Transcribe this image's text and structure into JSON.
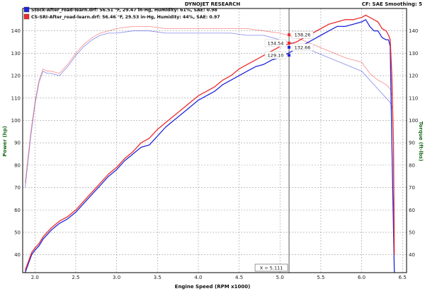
{
  "header": {
    "title": "DYNOJET RESEARCH",
    "settings": "CF: SAE  Smoothing: 5"
  },
  "chart_data": {
    "type": "line",
    "xlabel": "Engine Speed (RPM x1000)",
    "ylabel_left": "Power (hp)",
    "ylabel_right": "Torque (ft-lbs)",
    "xlim": [
      1.85,
      6.55
    ],
    "ylim": [
      32,
      150
    ],
    "x_ticks": [
      2.0,
      2.5,
      3.0,
      3.5,
      4.0,
      4.5,
      5.0,
      5.5,
      6.0,
      6.5
    ],
    "y_ticks": [
      40,
      50,
      60,
      70,
      80,
      90,
      100,
      110,
      120,
      130,
      140
    ],
    "grid": true,
    "legend_position": "top-left",
    "colors": {
      "stock": "#1f26d9",
      "cs": "#ee2b2b"
    },
    "series": [
      {
        "name": "Stock-After_road-learn.drf: 56.51 °F, 29.47 in-Hg, Humidity: 61%, SAE: 0.98",
        "key": "stock",
        "measure": "power",
        "x": [
          1.88,
          1.92,
          1.96,
          2.0,
          2.05,
          2.1,
          2.2,
          2.3,
          2.4,
          2.5,
          2.6,
          2.7,
          2.8,
          2.9,
          3.0,
          3.1,
          3.2,
          3.3,
          3.4,
          3.5,
          3.6,
          3.7,
          3.8,
          3.9,
          4.0,
          4.1,
          4.2,
          4.3,
          4.4,
          4.5,
          4.6,
          4.7,
          4.8,
          4.9,
          5.0,
          5.1,
          5.2,
          5.3,
          5.4,
          5.5,
          5.6,
          5.7,
          5.8,
          5.9,
          6.0,
          6.05,
          6.1,
          6.15,
          6.2,
          6.25,
          6.3,
          6.33,
          6.35,
          6.36,
          6.38,
          6.4
        ],
        "y": [
          32,
          36,
          40,
          42,
          44,
          47,
          51,
          54,
          56,
          59,
          63,
          67,
          71,
          75,
          78,
          82,
          85,
          88,
          89,
          93,
          97,
          100,
          103,
          106,
          109,
          111,
          113,
          116,
          118,
          120,
          122,
          124,
          125,
          127,
          128,
          130,
          132,
          134,
          136,
          138,
          140,
          142,
          142,
          143,
          144,
          145,
          142,
          140,
          140,
          137,
          136,
          136,
          133,
          110,
          70,
          32
        ]
      },
      {
        "name": "CS-SRI-After_road-learn.drf: 56.46 °F, 29.53 in-Hg, Humidity: 44%, SAE: 0.97",
        "key": "cs",
        "measure": "power",
        "x": [
          1.88,
          1.92,
          1.96,
          2.0,
          2.05,
          2.1,
          2.2,
          2.3,
          2.4,
          2.5,
          2.6,
          2.7,
          2.8,
          2.9,
          3.0,
          3.1,
          3.2,
          3.3,
          3.4,
          3.5,
          3.6,
          3.7,
          3.8,
          3.9,
          4.0,
          4.1,
          4.2,
          4.3,
          4.4,
          4.5,
          4.6,
          4.7,
          4.8,
          4.9,
          5.0,
          5.1,
          5.2,
          5.3,
          5.4,
          5.5,
          5.6,
          5.7,
          5.8,
          5.9,
          6.0,
          6.05,
          6.1,
          6.15,
          6.2,
          6.25,
          6.3,
          6.33,
          6.35,
          6.37,
          6.39,
          6.4
        ],
        "y": [
          33,
          37,
          41,
          43,
          45,
          48,
          52,
          55,
          57,
          60,
          64,
          68,
          72,
          76,
          79,
          83,
          86,
          90,
          92,
          96,
          99,
          102,
          105,
          108,
          111,
          113,
          115,
          118,
          120,
          123,
          125,
          127,
          129,
          131,
          133,
          134,
          135,
          137,
          139,
          141,
          143,
          144,
          145,
          145,
          146,
          147,
          146,
          145,
          144,
          141,
          140,
          138,
          136,
          120,
          90,
          40
        ]
      },
      {
        "key": "stock",
        "measure": "torque",
        "x": [
          1.88,
          1.95,
          2.0,
          2.05,
          2.1,
          2.15,
          2.2,
          2.3,
          2.4,
          2.5,
          2.6,
          2.7,
          2.8,
          2.9,
          3.0,
          3.2,
          3.4,
          3.6,
          3.8,
          4.0,
          4.2,
          4.4,
          4.6,
          4.8,
          5.0,
          5.2,
          5.4,
          5.6,
          5.8,
          6.0,
          6.1,
          6.2,
          6.3,
          6.35,
          6.38
        ],
        "y": [
          70,
          93,
          107,
          117,
          122,
          121,
          121,
          120,
          124,
          129,
          133,
          136,
          138,
          139,
          139,
          140,
          140,
          139,
          139,
          139,
          139,
          139,
          138,
          138,
          136,
          134,
          131,
          128,
          125,
          122,
          118,
          114,
          110,
          108,
          105
        ]
      },
      {
        "key": "cs",
        "measure": "torque",
        "x": [
          1.88,
          1.95,
          2.0,
          2.05,
          2.1,
          2.15,
          2.2,
          2.3,
          2.4,
          2.5,
          2.6,
          2.7,
          2.8,
          2.9,
          3.0,
          3.2,
          3.4,
          3.6,
          3.8,
          4.0,
          4.2,
          4.4,
          4.6,
          4.8,
          5.0,
          5.2,
          5.4,
          5.6,
          5.8,
          6.0,
          6.1,
          6.2,
          6.3,
          6.35,
          6.38
        ],
        "y": [
          72,
          95,
          108,
          118,
          123,
          122,
          122,
          121,
          125,
          130,
          134,
          137,
          139,
          140,
          141,
          142,
          142,
          141,
          141,
          141,
          141,
          141,
          141,
          140,
          139,
          137,
          134,
          131,
          128,
          126,
          121,
          118,
          116,
          114,
          110
        ]
      }
    ],
    "cursor": {
      "x": 5.111,
      "label": "X = 5.111",
      "markers": [
        {
          "key": "cs",
          "measure": "torque",
          "value": 138.26,
          "label": "138.26"
        },
        {
          "key": "stock",
          "measure": "torque",
          "value": 132.66,
          "label": "132.66"
        },
        {
          "key": "cs",
          "measure": "power",
          "value": 134.54,
          "label": "134.54"
        },
        {
          "key": "stock",
          "measure": "power",
          "value": 129.1,
          "label": "129.10"
        }
      ]
    }
  }
}
